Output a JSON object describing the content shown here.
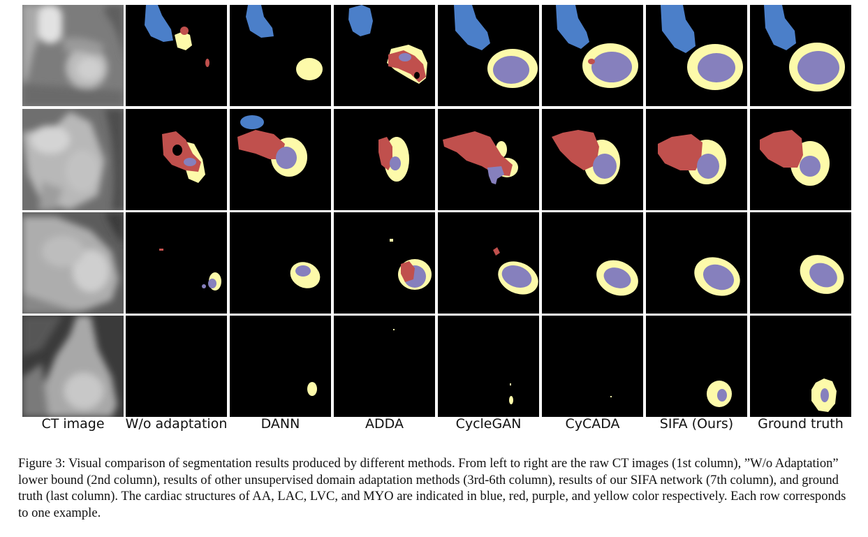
{
  "figure": {
    "column_labels": [
      "CT image",
      "W/o adaptation",
      "DANN",
      "ADDA",
      "CycleGAN",
      "CyCADA",
      "SIFA (Ours)",
      "Ground truth"
    ],
    "colors": {
      "AA": "#4b7fc9",
      "LAC": "#c0504d",
      "LVC": "#8680bd",
      "MYO": "#fdfaaa",
      "background": "#000000",
      "grid": "#ffffff"
    },
    "row_count": 4
  },
  "caption": "Figure 3: Visual comparison of segmentation results produced by different methods. From left to right are the raw CT images (1st column), ”W/o Adaptation” lower bound (2nd column), results of other unsupervised domain adaptation methods (3rd-6th column), results of our SIFA network (7th column), and ground truth (last column). The cardiac structures of AA, LAC, LVC, and MYO are indicated in blue, red, purple, and yellow color respectively. Each row corresponds to one example."
}
